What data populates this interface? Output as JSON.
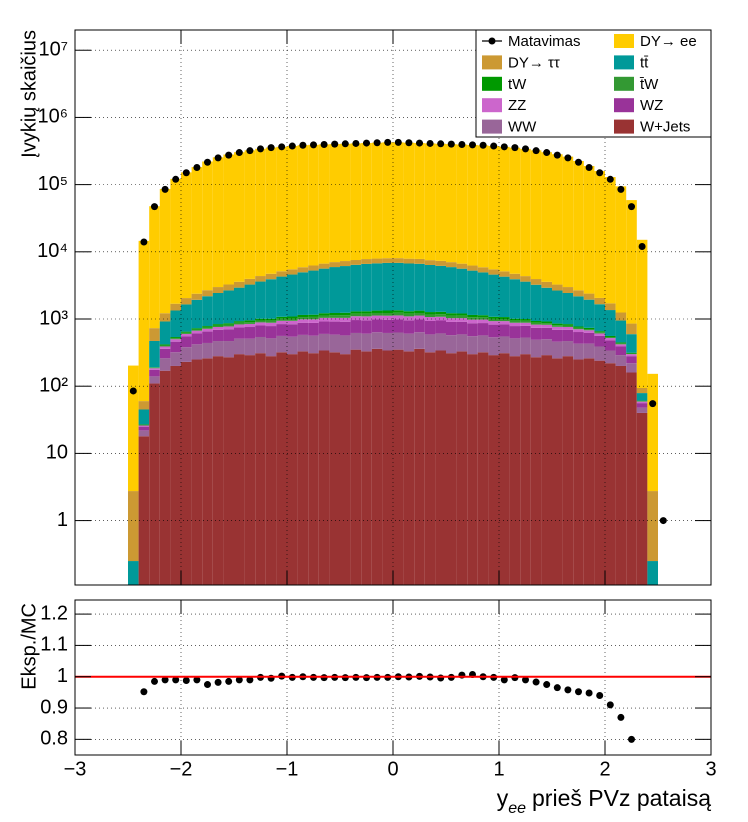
{
  "chart_data": [
    {
      "type": "stacked-histogram",
      "y_label": "Įvykių skaičius",
      "bins": [
        -2.5,
        -2.4,
        -2.3,
        -2.2,
        -2.1,
        -2.0,
        -1.9,
        -1.8,
        -1.7,
        -1.6,
        -1.5,
        -1.4,
        -1.3,
        -1.2,
        -1.1,
        -1.0,
        -0.9,
        -0.8,
        -0.7,
        -0.6,
        -0.5,
        -0.4,
        -0.3,
        -0.2,
        -0.1,
        0.0,
        0.1,
        0.2,
        0.3,
        0.4,
        0.5,
        0.6,
        0.7,
        0.8,
        0.9,
        1.0,
        1.1,
        1.2,
        1.3,
        1.4,
        1.5,
        1.6,
        1.7,
        1.8,
        1.9,
        2.0,
        2.1,
        2.2,
        2.3,
        2.4,
        2.5,
        2.6
      ],
      "series": [
        {
          "name": "DY→ ee",
          "color": "#ffcc00",
          "values": [
            200,
            14500,
            47000,
            85000,
            120000,
            150000,
            180000,
            218000,
            252000,
            277000,
            300000,
            320000,
            337000,
            352000,
            360000,
            370000,
            380000,
            385000,
            390000,
            394000,
            398000,
            403000,
            408000,
            413000,
            418000,
            418000,
            413000,
            408000,
            403000,
            398000,
            393000,
            388000,
            383000,
            378000,
            370000,
            360000,
            350000,
            336000,
            320000,
            300000,
            280000,
            258000,
            222000,
            187000,
            157000,
            128000,
            93000,
            58000,
            15000,
            150,
            0
          ]
        },
        {
          "name": "DY→ ττ",
          "color": "#cc9933",
          "values": [
            2.5,
            15,
            260,
            300,
            350,
            400,
            450,
            500,
            550,
            600,
            650,
            700,
            750,
            800,
            850,
            900,
            950,
            1000,
            1050,
            1100,
            1150,
            1150,
            1200,
            1200,
            1200,
            1200,
            1200,
            1200,
            1150,
            1150,
            1100,
            1050,
            1000,
            950,
            900,
            850,
            800,
            750,
            700,
            650,
            600,
            550,
            500,
            450,
            400,
            350,
            300,
            260,
            15,
            2.5,
            0
          ]
        },
        {
          "name": "tt̄",
          "color": "#009999",
          "values": [
            0.25,
            18,
            280,
            500,
            800,
            1000,
            1200,
            1400,
            1600,
            1800,
            2000,
            2300,
            2600,
            2900,
            3200,
            3500,
            3800,
            4100,
            4400,
            4700,
            4900,
            5100,
            5300,
            5400,
            5500,
            5500,
            5400,
            5300,
            5100,
            4900,
            4700,
            4400,
            4100,
            3800,
            3500,
            3200,
            2900,
            2600,
            2300,
            2000,
            1800,
            1600,
            1400,
            1200,
            1000,
            800,
            500,
            280,
            18,
            0.25,
            0
          ]
        },
        {
          "name": "tW",
          "color": "#009900",
          "values": [
            0,
            0.5,
            3,
            15,
            20,
            25,
            30,
            35,
            40,
            45,
            50,
            55,
            60,
            65,
            70,
            75,
            80,
            85,
            90,
            95,
            100,
            100,
            105,
            105,
            110,
            110,
            105,
            105,
            100,
            100,
            95,
            90,
            85,
            80,
            75,
            70,
            65,
            60,
            55,
            50,
            45,
            40,
            35,
            30,
            25,
            20,
            15,
            8,
            1,
            0,
            0
          ]
        },
        {
          "name": "t̄W",
          "color": "#339933",
          "values": [
            0,
            0.5,
            3,
            14,
            19,
            24,
            29,
            34,
            39,
            44,
            49,
            54,
            59,
            64,
            69,
            74,
            79,
            84,
            89,
            94,
            98,
            99,
            103,
            104,
            108,
            108,
            104,
            103,
            99,
            98,
            94,
            89,
            84,
            79,
            74,
            69,
            64,
            59,
            54,
            49,
            44,
            39,
            34,
            29,
            24,
            19,
            14,
            7,
            1,
            0,
            0
          ]
        },
        {
          "name": "ZZ",
          "color": "#cc66cc",
          "values": [
            0,
            1,
            10,
            30,
            40,
            50,
            60,
            65,
            70,
            75,
            80,
            85,
            90,
            95,
            100,
            105,
            110,
            115,
            120,
            125,
            130,
            135,
            140,
            140,
            145,
            145,
            140,
            140,
            135,
            130,
            125,
            120,
            115,
            110,
            105,
            100,
            95,
            90,
            85,
            80,
            75,
            70,
            65,
            60,
            50,
            40,
            30,
            20,
            3,
            0,
            0
          ]
        },
        {
          "name": "WZ",
          "color": "#993399",
          "values": [
            0,
            3,
            35,
            100,
            140,
            170,
            190,
            210,
            220,
            230,
            240,
            250,
            260,
            270,
            280,
            290,
            300,
            310,
            320,
            330,
            340,
            345,
            350,
            350,
            355,
            355,
            350,
            350,
            345,
            340,
            330,
            320,
            310,
            300,
            290,
            280,
            270,
            260,
            250,
            240,
            230,
            220,
            210,
            190,
            170,
            140,
            100,
            60,
            8,
            0,
            0
          ]
        },
        {
          "name": "WW",
          "color": "#996699",
          "values": [
            0,
            4,
            30,
            90,
            120,
            150,
            170,
            180,
            190,
            200,
            210,
            220,
            230,
            235,
            240,
            245,
            250,
            255,
            260,
            265,
            270,
            270,
            275,
            275,
            280,
            280,
            275,
            275,
            270,
            270,
            265,
            260,
            255,
            250,
            245,
            240,
            235,
            230,
            220,
            210,
            200,
            190,
            180,
            170,
            150,
            120,
            90,
            60,
            8,
            0,
            0
          ]
        },
        {
          "name": "W+Jets",
          "color": "#993333",
          "values": [
            0,
            18,
            110,
            170,
            200,
            230,
            250,
            260,
            280,
            270,
            300,
            290,
            310,
            280,
            320,
            300,
            330,
            310,
            340,
            320,
            300,
            350,
            330,
            360,
            340,
            350,
            330,
            360,
            320,
            340,
            310,
            330,
            300,
            320,
            290,
            310,
            280,
            300,
            270,
            290,
            260,
            280,
            250,
            260,
            240,
            220,
            200,
            160,
            40,
            0,
            0
          ]
        }
      ],
      "data": {
        "name": "Matavimas",
        "color": "#000000",
        "values": [
          85,
          14000,
          47000,
          85000,
          120000,
          150000,
          180000,
          215000,
          250000,
          275000,
          300000,
          320000,
          340000,
          355000,
          365000,
          375000,
          385000,
          390000,
          395000,
          400000,
          405000,
          410000,
          415000,
          420000,
          425000,
          425000,
          420000,
          415000,
          410000,
          405000,
          400000,
          395000,
          390000,
          385000,
          375000,
          365000,
          355000,
          340000,
          320000,
          300000,
          275000,
          250000,
          215000,
          180000,
          150000,
          120000,
          85000,
          47000,
          12000,
          55,
          1
        ]
      },
      "xlim": [
        -3,
        3
      ],
      "xticks": [
        -3,
        -2,
        -1,
        0,
        1,
        2,
        3
      ],
      "x_tick_labels": false,
      "ylim": [
        0.11,
        20000000
      ],
      "log_y": true,
      "yticks": [
        1,
        10,
        {
          "value": 100,
          "label": "10²"
        },
        {
          "value": 1000,
          "label": "10³"
        },
        {
          "value": 10000,
          "label": "10⁴"
        },
        {
          "value": 100000,
          "label": "10⁵"
        },
        {
          "value": 1000000,
          "label": "10⁶"
        },
        {
          "value": 10000000,
          "label": "10⁷"
        }
      ],
      "grid": true,
      "legend": "top-right"
    },
    {
      "type": "ratio",
      "y_label": "Eksp./MC",
      "x_label": {
        "symbol": "y",
        "subscript": "ee",
        "text": "prieš PVz pataisą"
      },
      "x": [
        -2.35,
        -2.25,
        -2.15,
        -2.05,
        -1.95,
        -1.85,
        -1.75,
        -1.65,
        -1.55,
        -1.45,
        -1.35,
        -1.25,
        -1.15,
        -1.05,
        -0.95,
        -0.85,
        -0.75,
        -0.65,
        -0.55,
        -0.45,
        -0.35,
        -0.25,
        -0.15,
        -0.05,
        0.05,
        0.15,
        0.25,
        0.35,
        0.45,
        0.55,
        0.65,
        0.75,
        0.85,
        0.95,
        1.05,
        1.15,
        1.25,
        1.35,
        1.45,
        1.55,
        1.65,
        1.75,
        1.85,
        1.95,
        2.05,
        2.15,
        2.25
      ],
      "values": [
        0.952,
        0.985,
        0.99,
        0.99,
        0.988,
        0.99,
        0.975,
        0.982,
        0.985,
        0.99,
        0.99,
        0.998,
        0.995,
        1.002,
        0.998,
        1.0,
        0.998,
        0.997,
        0.998,
        0.997,
        0.998,
        0.997,
        0.998,
        0.998,
        1.0,
        0.999,
        1.001,
        0.999,
        0.996,
        0.998,
        1.005,
        1.007,
        1.0,
        0.998,
        0.99,
        0.997,
        0.99,
        0.983,
        0.975,
        0.965,
        0.958,
        0.952,
        0.948,
        0.94,
        0.91,
        0.87,
        0.8
      ],
      "color": "#000000",
      "xlim": [
        -3,
        3
      ],
      "xticks": [
        {
          "value": -3,
          "label": "−3"
        },
        {
          "value": -2,
          "label": "−2"
        },
        {
          "value": -1,
          "label": "−1"
        },
        0,
        1,
        2,
        3
      ],
      "x_tick_labels": true,
      "ylim": [
        0.75,
        1.245
      ],
      "yticks": [
        0.8,
        0.9,
        1,
        1.1,
        1.2
      ],
      "reference_line": 1,
      "reference_color": "#ff0000",
      "grid": true
    }
  ]
}
